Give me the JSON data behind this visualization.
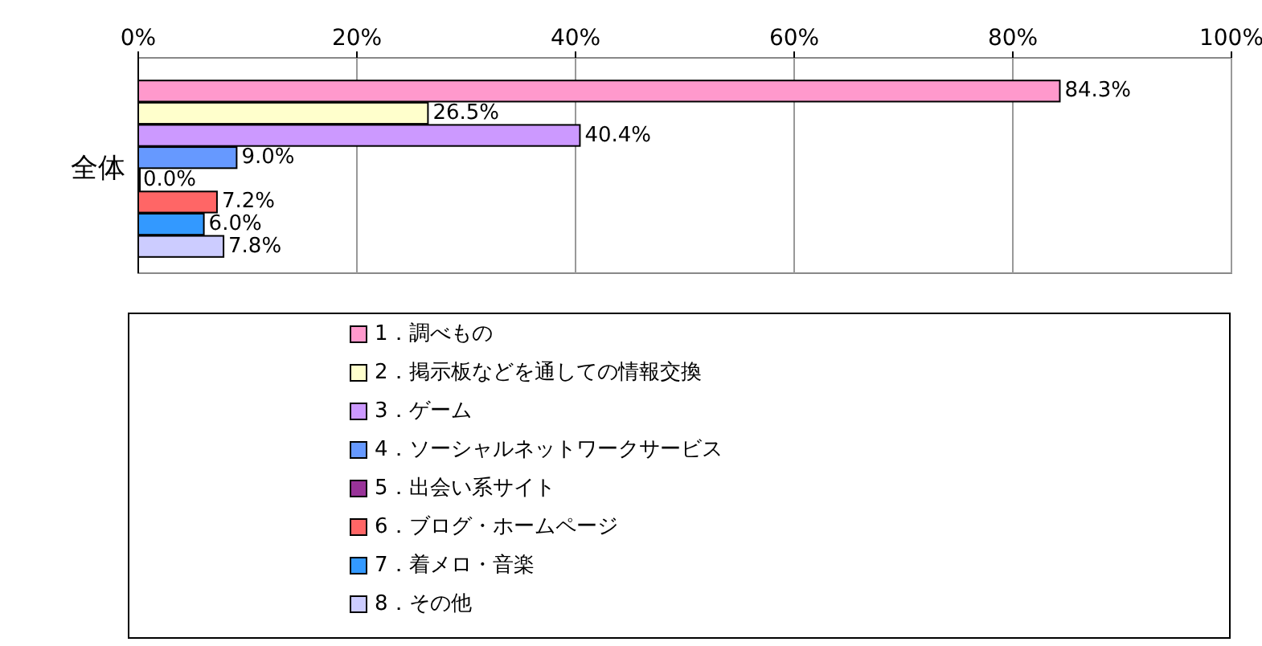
{
  "chart_data": {
    "type": "bar",
    "orientation": "horizontal",
    "categories": [
      "全体"
    ],
    "series": [
      {
        "name": "1．調べもの",
        "color": "#ff99cc",
        "values": [
          84.3
        ],
        "value_labels": [
          "84.3%"
        ]
      },
      {
        "name": "2．掲示板などを通しての情報交換",
        "color": "#ffffcc",
        "values": [
          26.5
        ],
        "value_labels": [
          "26.5%"
        ]
      },
      {
        "name": "3．ゲーム",
        "color": "#cc99ff",
        "values": [
          40.4
        ],
        "value_labels": [
          "40.4%"
        ]
      },
      {
        "name": "4．ソーシャルネットワークサービス",
        "color": "#6699ff",
        "values": [
          9.0
        ],
        "value_labels": [
          "9.0%"
        ]
      },
      {
        "name": "5．出会い系サイト",
        "color": "#993399",
        "values": [
          0.0
        ],
        "value_labels": [
          "0.0%"
        ]
      },
      {
        "name": "6．ブログ・ホームページ",
        "color": "#ff6666",
        "values": [
          7.2
        ],
        "value_labels": [
          "7.2%"
        ]
      },
      {
        "name": "7．着メロ・音楽",
        "color": "#3399ff",
        "values": [
          6.0
        ],
        "value_labels": [
          "6.0%"
        ]
      },
      {
        "name": "8．その他",
        "color": "#ccccff",
        "values": [
          7.8
        ],
        "value_labels": [
          "7.8%"
        ]
      }
    ],
    "xlim": [
      0,
      100
    ],
    "xticks": [
      {
        "value": 0,
        "label": "0%"
      },
      {
        "value": 20,
        "label": "20%"
      },
      {
        "value": 40,
        "label": "40%"
      },
      {
        "value": 60,
        "label": "60%"
      },
      {
        "value": 80,
        "label": "80%"
      },
      {
        "value": 100,
        "label": "100%"
      }
    ],
    "grid": "x",
    "legend": "bottom"
  }
}
